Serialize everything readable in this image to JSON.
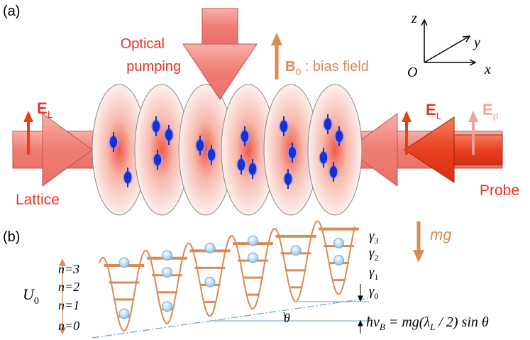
{
  "panel_a": {
    "label": "(a)",
    "optical_pumping": [
      "Optical",
      "pumping"
    ],
    "bias_field": {
      "symbol": "B",
      "sub": "0",
      "text": " : bias field"
    },
    "axes": {
      "z": "z",
      "y": "y",
      "x": "x",
      "origin": "O"
    },
    "lattice_field_left": {
      "symbol": "E",
      "sub": "L"
    },
    "lattice_field_right": {
      "symbol": "E",
      "sub": "L"
    },
    "probe_field": {
      "symbol": "E",
      "sub": "p"
    },
    "lattice": "Lattice",
    "probe": "Probe"
  },
  "panel_b": {
    "label": "(b)",
    "gravity": "mg",
    "levels": [
      "n=3",
      "n=2",
      "n=1",
      "n=0"
    ],
    "depth": {
      "symbol": "U",
      "sub": "0"
    },
    "rates": [
      {
        "symbol": "γ",
        "sub": "3"
      },
      {
        "symbol": "γ",
        "sub": "2"
      },
      {
        "symbol": "γ",
        "sub": "1"
      },
      {
        "symbol": "γ",
        "sub": "0"
      }
    ],
    "angle": "θ",
    "formula": [
      {
        "text": "ħν"
      },
      {
        "sub": "B"
      },
      {
        "text": " = mg(λ"
      },
      {
        "sub": "L"
      },
      {
        "text": " / 2) sin θ"
      }
    ]
  }
}
